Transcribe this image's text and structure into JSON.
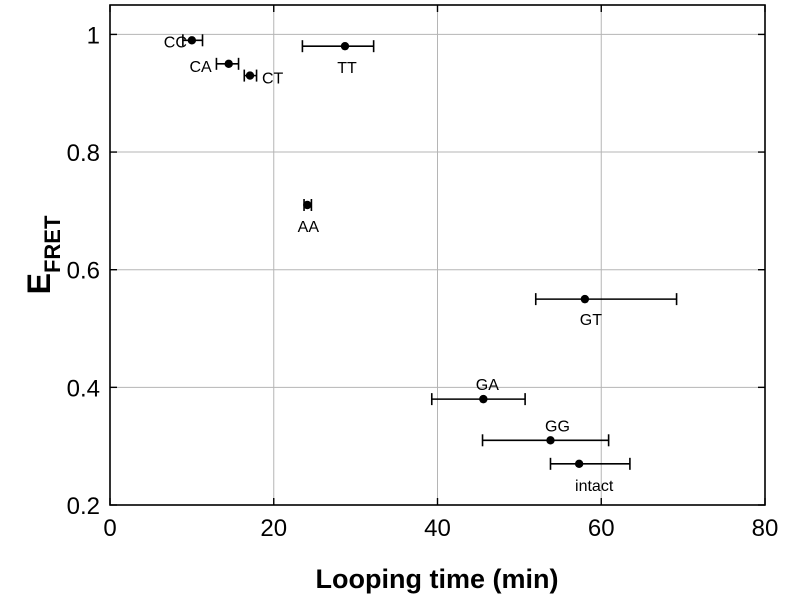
{
  "chart_data": {
    "type": "scatter",
    "title": "",
    "xlabel": "Looping time (min)",
    "ylabel_main": "E",
    "ylabel_sub": "FRET",
    "xlim": [
      0,
      80
    ],
    "ylim": [
      0.2,
      1.05
    ],
    "xticks": [
      0,
      20,
      40,
      60,
      80
    ],
    "yticks": [
      0.2,
      0.4,
      0.6,
      0.8,
      1
    ],
    "xtick_labels": [
      "0",
      "20",
      "40",
      "60",
      "80"
    ],
    "ytick_labels": [
      "0.2",
      "0.4",
      "0.6",
      "0.8",
      "1"
    ],
    "grid": true,
    "points": [
      {
        "label": "CC",
        "x": 10.0,
        "y": 0.99,
        "xerr_low": 8.9,
        "xerr_high": 11.3
      },
      {
        "label": "TT",
        "x": 28.7,
        "y": 0.98,
        "xerr_low": 23.5,
        "xerr_high": 32.2
      },
      {
        "label": "CA",
        "x": 14.5,
        "y": 0.95,
        "xerr_low": 13.0,
        "xerr_high": 15.7
      },
      {
        "label": "CT",
        "x": 17.1,
        "y": 0.93,
        "xerr_low": 16.4,
        "xerr_high": 17.9
      },
      {
        "label": "AA",
        "x": 24.1,
        "y": 0.71,
        "xerr_low": 23.7,
        "xerr_high": 24.6
      },
      {
        "label": "GT",
        "x": 58.0,
        "y": 0.55,
        "xerr_low": 52.0,
        "xerr_high": 69.2
      },
      {
        "label": "GA",
        "x": 45.6,
        "y": 0.38,
        "xerr_low": 39.3,
        "xerr_high": 50.7
      },
      {
        "label": "GG",
        "x": 53.8,
        "y": 0.31,
        "xerr_low": 45.5,
        "xerr_high": 60.9
      },
      {
        "label": "intact",
        "x": 57.3,
        "y": 0.27,
        "xerr_low": 53.8,
        "xerr_high": 63.5
      }
    ]
  }
}
